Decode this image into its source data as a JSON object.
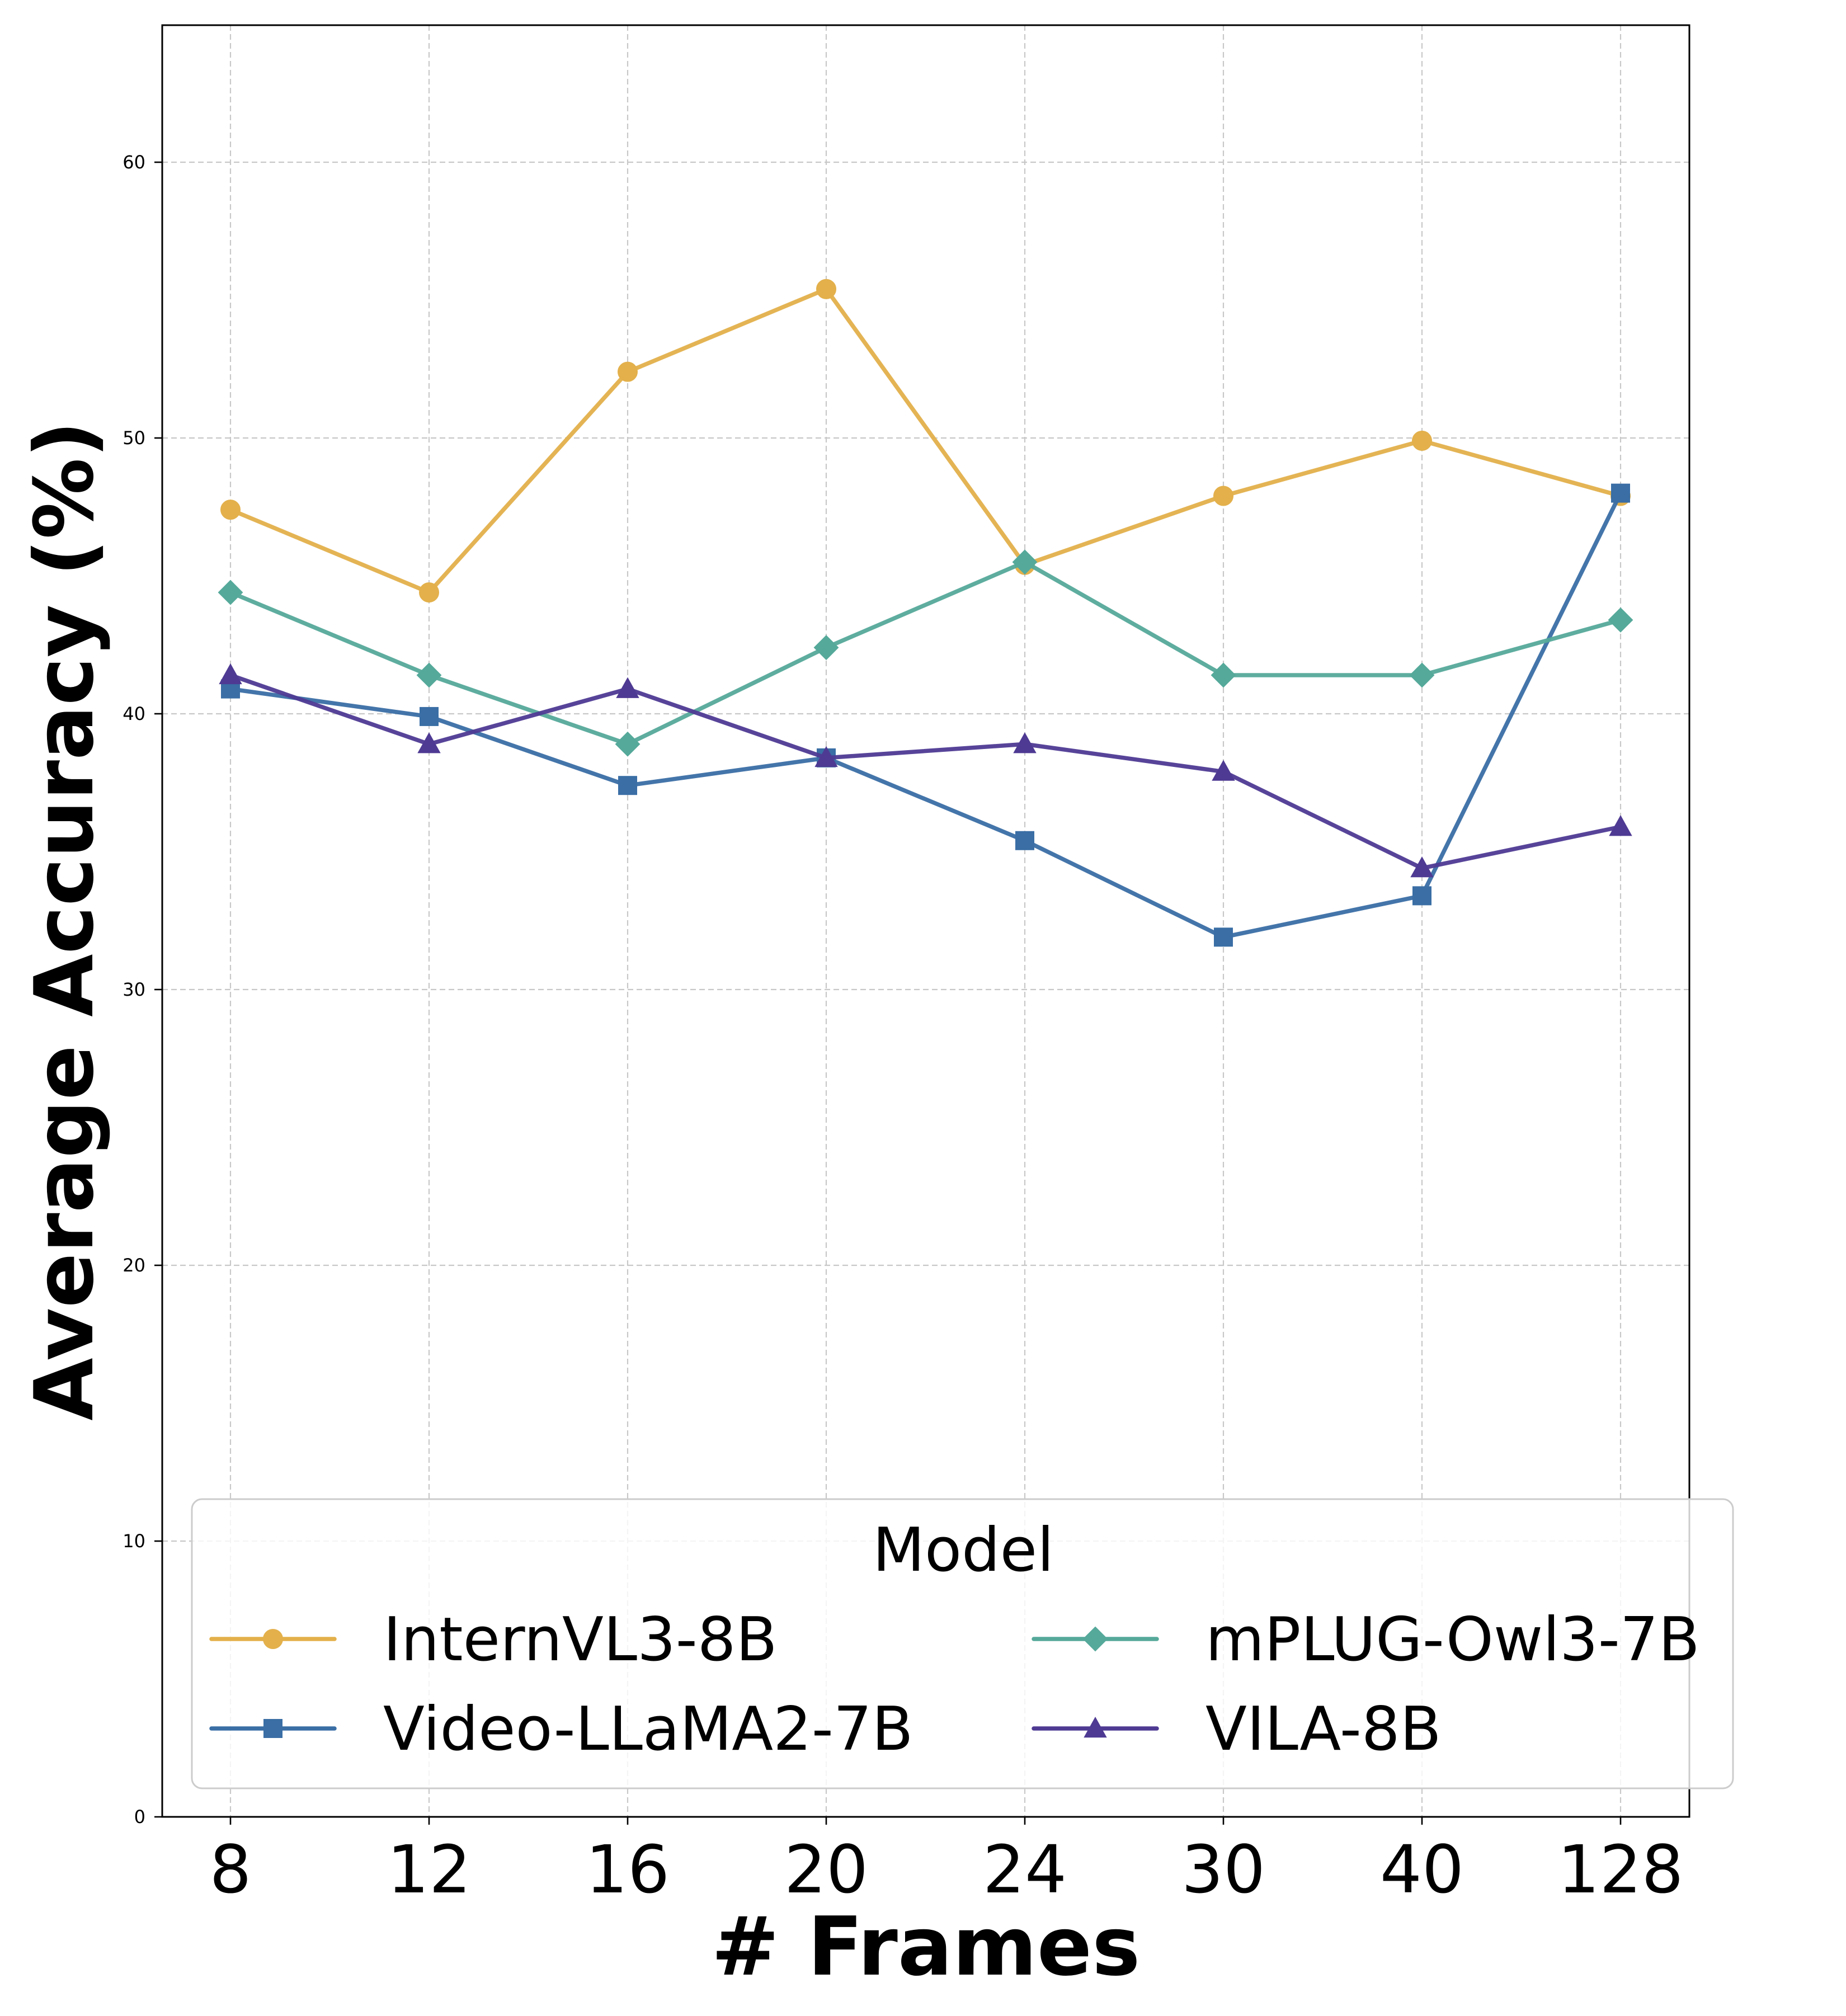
{
  "chart_data": {
    "type": "line",
    "title": "",
    "xlabel": "# Frames",
    "ylabel": "Average Accuracy (%)",
    "categories": [
      "8",
      "12",
      "16",
      "20",
      "24",
      "30",
      "40",
      "128"
    ],
    "ylim": [
      0,
      65
    ],
    "yticks": [
      0,
      10,
      20,
      30,
      40,
      50,
      60
    ],
    "grid": true,
    "legend": {
      "title": "Model",
      "placement": "lower-center",
      "columns": 2
    },
    "series": [
      {
        "name": "InternVL3-8B",
        "color": "#E3B04B",
        "marker": "circle",
        "values": [
          47.4,
          44.4,
          52.4,
          55.4,
          45.4,
          47.9,
          49.9,
          47.9
        ]
      },
      {
        "name": "Video-LLaMA2-7B",
        "color": "#3A6EA5",
        "marker": "square",
        "values": [
          40.9,
          39.9,
          37.4,
          38.4,
          35.4,
          31.9,
          33.4,
          48.0
        ]
      },
      {
        "name": "mPLUG-Owl3-7B",
        "color": "#55A99A",
        "marker": "diamond",
        "values": [
          44.4,
          41.4,
          38.9,
          42.4,
          45.5,
          41.4,
          41.4,
          43.4
        ]
      },
      {
        "name": "VILA-8B",
        "color": "#4E3A93",
        "marker": "triangle",
        "values": [
          41.4,
          38.9,
          40.9,
          38.4,
          38.9,
          37.9,
          34.4,
          35.9
        ]
      }
    ]
  }
}
